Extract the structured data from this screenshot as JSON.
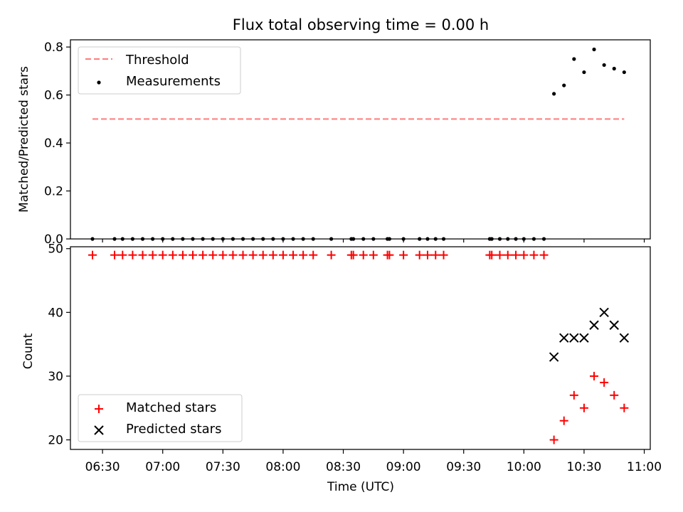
{
  "chart_data": [
    {
      "type": "scatter",
      "title": "Flux total observing time = 0.00 h",
      "xlabel": "",
      "ylabel": "Matched/Predicted stars",
      "ylim": [
        0,
        0.83
      ],
      "yticks": [
        0.0,
        0.2,
        0.4,
        0.6,
        0.8
      ],
      "ytick_labels": [
        "0.0",
        "0.2",
        "0.4",
        "0.6",
        "0.8"
      ],
      "legend_placement": "upper-left",
      "threshold": {
        "name": "Threshold",
        "value": 0.5,
        "x_range": [
          "06:25",
          "10:50"
        ],
        "color": "#ff7b7b",
        "style": "dashed"
      },
      "series": [
        {
          "name": "Measurements",
          "color": "#000000",
          "marker": "dot",
          "points": [
            [
              "06:25",
              0
            ],
            [
              "06:36",
              0
            ],
            [
              "06:40",
              0
            ],
            [
              "06:45",
              0
            ],
            [
              "06:50",
              0
            ],
            [
              "06:55",
              0
            ],
            [
              "07:00",
              0
            ],
            [
              "07:05",
              0
            ],
            [
              "07:10",
              0
            ],
            [
              "07:15",
              0
            ],
            [
              "07:20",
              0
            ],
            [
              "07:25",
              0
            ],
            [
              "07:30",
              0
            ],
            [
              "07:35",
              0
            ],
            [
              "07:40",
              0
            ],
            [
              "07:45",
              0
            ],
            [
              "07:50",
              0
            ],
            [
              "07:55",
              0
            ],
            [
              "08:00",
              0
            ],
            [
              "08:05",
              0
            ],
            [
              "08:10",
              0
            ],
            [
              "08:15",
              0
            ],
            [
              "08:24",
              0
            ],
            [
              "08:34",
              0
            ],
            [
              "08:35",
              0
            ],
            [
              "08:40",
              0
            ],
            [
              "08:45",
              0
            ],
            [
              "08:52",
              0
            ],
            [
              "08:53",
              0
            ],
            [
              "09:00",
              0
            ],
            [
              "09:08",
              0
            ],
            [
              "09:12",
              0
            ],
            [
              "09:16",
              0
            ],
            [
              "09:20",
              0
            ],
            [
              "09:43",
              0
            ],
            [
              "09:44",
              0
            ],
            [
              "09:48",
              0
            ],
            [
              "09:52",
              0
            ],
            [
              "09:56",
              0
            ],
            [
              "10:00",
              0
            ],
            [
              "10:05",
              0
            ],
            [
              "10:10",
              0
            ],
            [
              "10:15",
              0.605
            ],
            [
              "10:20",
              0.64
            ],
            [
              "10:25",
              0.75
            ],
            [
              "10:30",
              0.695
            ],
            [
              "10:35",
              0.79
            ],
            [
              "10:40",
              0.725
            ],
            [
              "10:45",
              0.71
            ],
            [
              "10:50",
              0.695
            ]
          ]
        }
      ]
    },
    {
      "type": "scatter",
      "title": "",
      "xlabel": "Time (UTC)",
      "ylabel": "Count",
      "ylim": [
        18.5,
        50.3
      ],
      "yticks": [
        20,
        30,
        40,
        50
      ],
      "ytick_labels": [
        "20",
        "30",
        "40",
        "50"
      ],
      "xlim": [
        "06:14",
        "11:03"
      ],
      "xticks": [
        "06:30",
        "07:00",
        "07:30",
        "08:00",
        "08:30",
        "09:00",
        "09:30",
        "10:00",
        "10:30",
        "11:00"
      ],
      "legend_placement": "lower-left",
      "series": [
        {
          "name": "Matched stars",
          "color": "#ff0000",
          "marker": "plus",
          "points": [
            [
              "06:25",
              49
            ],
            [
              "06:36",
              49
            ],
            [
              "06:40",
              49
            ],
            [
              "06:45",
              49
            ],
            [
              "06:50",
              49
            ],
            [
              "06:55",
              49
            ],
            [
              "07:00",
              49
            ],
            [
              "07:05",
              49
            ],
            [
              "07:10",
              49
            ],
            [
              "07:15",
              49
            ],
            [
              "07:20",
              49
            ],
            [
              "07:25",
              49
            ],
            [
              "07:30",
              49
            ],
            [
              "07:35",
              49
            ],
            [
              "07:40",
              49
            ],
            [
              "07:45",
              49
            ],
            [
              "07:50",
              49
            ],
            [
              "07:55",
              49
            ],
            [
              "08:00",
              49
            ],
            [
              "08:05",
              49
            ],
            [
              "08:10",
              49
            ],
            [
              "08:15",
              49
            ],
            [
              "08:24",
              49
            ],
            [
              "08:34",
              49
            ],
            [
              "08:35",
              49
            ],
            [
              "08:40",
              49
            ],
            [
              "08:45",
              49
            ],
            [
              "08:52",
              49
            ],
            [
              "08:53",
              49
            ],
            [
              "09:00",
              49
            ],
            [
              "09:08",
              49
            ],
            [
              "09:12",
              49
            ],
            [
              "09:16",
              49
            ],
            [
              "09:20",
              49
            ],
            [
              "09:43",
              49
            ],
            [
              "09:44",
              49
            ],
            [
              "09:48",
              49
            ],
            [
              "09:52",
              49
            ],
            [
              "09:56",
              49
            ],
            [
              "10:00",
              49
            ],
            [
              "10:05",
              49
            ],
            [
              "10:10",
              49
            ],
            [
              "10:15",
              20
            ],
            [
              "10:20",
              23
            ],
            [
              "10:25",
              27
            ],
            [
              "10:30",
              25
            ],
            [
              "10:35",
              30
            ],
            [
              "10:40",
              29
            ],
            [
              "10:45",
              27
            ],
            [
              "10:50",
              25
            ]
          ]
        },
        {
          "name": "Predicted stars",
          "color": "#000000",
          "marker": "x",
          "points": [
            [
              "10:15",
              33
            ],
            [
              "10:20",
              36
            ],
            [
              "10:25",
              36
            ],
            [
              "10:30",
              36
            ],
            [
              "10:35",
              38
            ],
            [
              "10:40",
              40
            ],
            [
              "10:45",
              38
            ],
            [
              "10:50",
              36
            ]
          ]
        }
      ]
    }
  ]
}
